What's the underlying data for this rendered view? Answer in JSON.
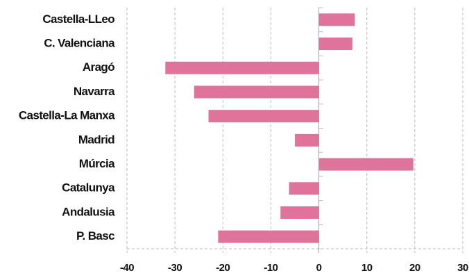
{
  "chart_data": {
    "type": "barh",
    "categories": [
      "Castella-LLeo",
      "C. Valenciana",
      "Aragó",
      "Navarra",
      "Castella-La Manxa",
      "Madrid",
      "Múrcia",
      "Catalunya",
      "Andalusia",
      "P. Basc"
    ],
    "values": [
      7.5,
      7,
      -32,
      -26,
      -23,
      -5,
      19.7,
      -6.2,
      -8,
      -21
    ],
    "color": "#e07399",
    "xlim": [
      -40,
      30
    ],
    "xticks": [
      -40,
      -30,
      -20,
      -10,
      0,
      10,
      20,
      30
    ],
    "grid": true
  }
}
